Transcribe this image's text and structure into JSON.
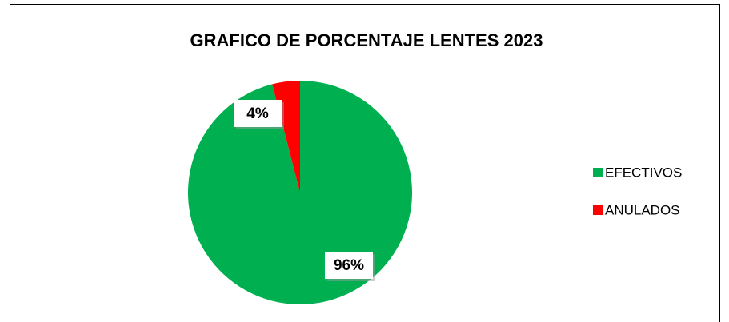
{
  "chart_data": {
    "type": "pie",
    "title": "GRAFICO DE PORCENTAJE LENTES 2023",
    "categories": [
      "EFECTIVOS",
      "ANULADOS"
    ],
    "values": [
      96,
      4
    ],
    "value_labels": [
      "96%",
      "4%"
    ],
    "colors": [
      "#00b050",
      "#ff0000"
    ],
    "legend": "right"
  }
}
